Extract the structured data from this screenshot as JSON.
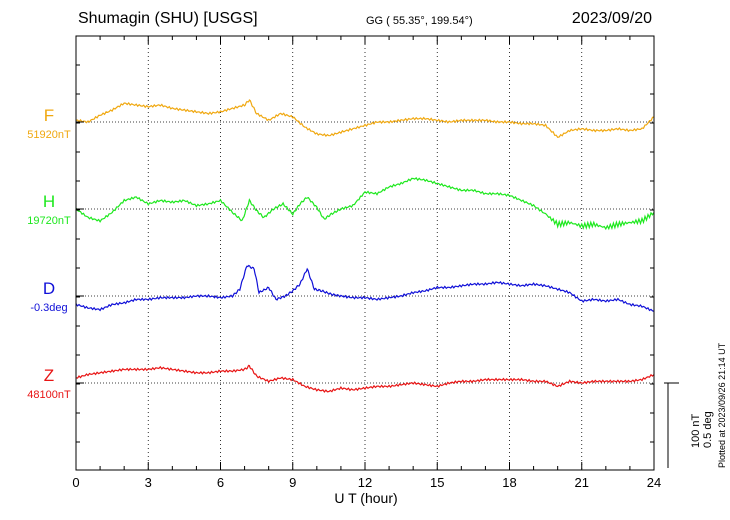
{
  "header": {
    "station": "Shumagin (SHU)  [USGS]",
    "coords": "GG ( 55.35°, 199.54°)",
    "date": "2023/09/20"
  },
  "footnote": "Plotted at 2023/09/26 21:14 UT",
  "scale": {
    "nt": "100 nT",
    "deg": "0.5 deg"
  },
  "chart_data": {
    "type": "line",
    "xlabel": "U T (hour)",
    "xlim": [
      0,
      24
    ],
    "xticks": [
      "0",
      "3",
      "6",
      "9",
      "12",
      "15",
      "18",
      "21",
      "24"
    ],
    "units_per_panel": "nT (deviation from baseline)",
    "grid": true,
    "series": [
      {
        "name": "F",
        "baseline_label": "51920nT",
        "color": "#f0a810",
        "x": [
          0,
          0.5,
          1,
          1.5,
          2,
          2.5,
          3,
          3.5,
          4,
          4.5,
          5,
          5.5,
          6,
          6.5,
          7,
          7.2,
          7.5,
          8,
          8.5,
          9,
          9.5,
          10,
          10.5,
          11,
          11.5,
          12,
          12.5,
          13,
          13.5,
          14,
          14.5,
          15,
          15.5,
          16,
          16.5,
          17,
          17.5,
          18,
          18.5,
          19,
          19.5,
          20,
          20.5,
          21,
          21.5,
          22,
          22.5,
          23,
          23.5,
          24
        ],
        "values": [
          2,
          0,
          8,
          14,
          22,
          20,
          18,
          20,
          16,
          14,
          12,
          10,
          12,
          16,
          20,
          26,
          10,
          2,
          10,
          6,
          -6,
          -14,
          -16,
          -12,
          -8,
          -4,
          0,
          0,
          2,
          4,
          4,
          2,
          0,
          2,
          2,
          2,
          0,
          0,
          -2,
          -2,
          -4,
          -18,
          -10,
          -8,
          -10,
          -10,
          -8,
          -10,
          -8,
          6
        ]
      },
      {
        "name": "H",
        "baseline_label": "19720nT",
        "color": "#1ee81e",
        "x": [
          0,
          0.5,
          1,
          1.5,
          2,
          2.5,
          3,
          3.5,
          4,
          4.5,
          5,
          5.5,
          6,
          6.5,
          6.9,
          7.2,
          7.5,
          7.8,
          8.2,
          8.6,
          9,
          9.3,
          9.6,
          10,
          10.3,
          10.6,
          11,
          11.5,
          12,
          12.5,
          13,
          13.5,
          14,
          14.5,
          15,
          15.5,
          16,
          16.5,
          17,
          17.5,
          18,
          18.5,
          19,
          19.5,
          20,
          20.5,
          21,
          21.5,
          22,
          22.5,
          23,
          23.5,
          24
        ],
        "values": [
          0,
          -10,
          -14,
          -4,
          10,
          14,
          6,
          10,
          8,
          10,
          4,
          6,
          10,
          -4,
          -14,
          10,
          -2,
          -10,
          0,
          6,
          -6,
          6,
          14,
          2,
          -12,
          -6,
          0,
          4,
          20,
          18,
          26,
          30,
          36,
          34,
          30,
          26,
          22,
          22,
          18,
          18,
          16,
          10,
          4,
          -6,
          -18,
          -16,
          -20,
          -18,
          -22,
          -18,
          -16,
          -14,
          -4
        ]
      },
      {
        "name": "D",
        "baseline_label": "-0.3deg",
        "color": "#1010d8",
        "x": [
          0,
          0.5,
          1,
          1.5,
          2,
          2.5,
          3,
          3.5,
          4,
          4.5,
          5,
          5.5,
          6,
          6.5,
          6.8,
          7.1,
          7.4,
          7.6,
          8,
          8.3,
          8.7,
          9,
          9.3,
          9.6,
          9.9,
          10.2,
          10.6,
          11,
          11.5,
          12,
          12.5,
          13,
          13.5,
          14,
          14.5,
          15,
          15.5,
          16,
          16.5,
          17,
          17.5,
          18,
          18.5,
          19,
          19.5,
          20,
          20.5,
          21,
          21.5,
          22,
          22.5,
          23,
          23.5,
          24
        ],
        "values": [
          -10,
          -14,
          -16,
          -10,
          -8,
          -4,
          -4,
          -2,
          -2,
          -2,
          0,
          0,
          -2,
          0,
          8,
          36,
          32,
          4,
          10,
          -4,
          0,
          6,
          14,
          32,
          8,
          6,
          2,
          0,
          -2,
          -2,
          -4,
          -2,
          0,
          4,
          6,
          10,
          10,
          12,
          14,
          14,
          16,
          14,
          12,
          14,
          12,
          8,
          4,
          -6,
          -4,
          -6,
          -4,
          -10,
          -12,
          -18
        ]
      },
      {
        "name": "Z",
        "baseline_label": "48100nT",
        "color": "#e81414",
        "x": [
          0,
          0.5,
          1,
          1.5,
          2,
          2.5,
          3,
          3.5,
          4,
          4.5,
          5,
          5.5,
          6,
          6.5,
          7,
          7.2,
          7.5,
          8,
          8.5,
          9,
          9.5,
          10,
          10.5,
          11,
          11.5,
          12,
          12.5,
          13,
          13.5,
          14,
          14.5,
          15,
          15.5,
          16,
          16.5,
          17,
          17.5,
          18,
          18.5,
          19,
          19.5,
          20,
          20.5,
          21,
          21.5,
          22,
          22.5,
          23,
          23.5,
          24
        ],
        "values": [
          6,
          10,
          12,
          14,
          16,
          16,
          16,
          18,
          16,
          14,
          12,
          12,
          14,
          14,
          16,
          20,
          8,
          2,
          6,
          4,
          -4,
          -8,
          -10,
          -6,
          -8,
          -6,
          -4,
          -4,
          -2,
          0,
          -2,
          -4,
          0,
          2,
          2,
          4,
          4,
          4,
          4,
          2,
          2,
          -4,
          2,
          0,
          2,
          2,
          2,
          2,
          4,
          10
        ]
      }
    ]
  }
}
